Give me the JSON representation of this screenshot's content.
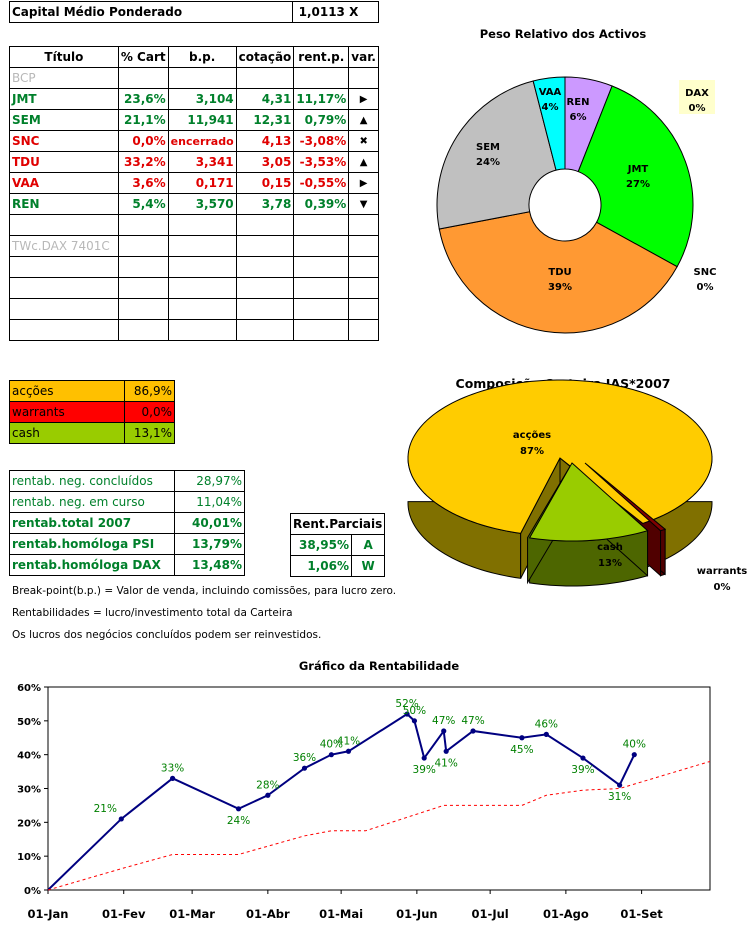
{
  "header": {
    "label": "Capital Médio Ponderado",
    "value": "1,0113 X"
  },
  "portfolio": {
    "columns": [
      "Título",
      "% Cart",
      "b.p.",
      "cotação",
      "rent.p.",
      "var."
    ],
    "rows": [
      {
        "titulo": "BCP",
        "cart": "",
        "bp": "",
        "cot": "",
        "rent": "",
        "var": "",
        "style": "grey"
      },
      {
        "titulo": "JMT",
        "cart": "23,6%",
        "bp": "3,104",
        "cot": "4,31",
        "rent": "11,17%",
        "var": "▶",
        "style": "green"
      },
      {
        "titulo": "SEM",
        "cart": "21,1%",
        "bp": "11,941",
        "cot": "12,31",
        "rent": "0,79%",
        "var": "▲",
        "style": "green"
      },
      {
        "titulo": "SNC",
        "cart": "0,0%",
        "bp": "encerrado",
        "cot": "4,13",
        "rent": "-3,08%",
        "var": "✖",
        "style": "red"
      },
      {
        "titulo": "TDU",
        "cart": "33,2%",
        "bp": "3,341",
        "cot": "3,05",
        "rent": "-3,53%",
        "var": "▲",
        "style": "red"
      },
      {
        "titulo": "VAA",
        "cart": "3,6%",
        "bp": "0,171",
        "cot": "0,15",
        "rent": "-0,55%",
        "var": "▶",
        "style": "red"
      },
      {
        "titulo": "REN",
        "cart": "5,4%",
        "bp": "3,570",
        "cot": "3,78",
        "rent": "0,39%",
        "var": "▼",
        "style": "green"
      },
      {
        "titulo": "",
        "cart": "",
        "bp": "",
        "cot": "",
        "rent": "",
        "var": "",
        "style": "grey"
      },
      {
        "titulo": "TWc.DAX 7401C",
        "cart": "",
        "bp": "",
        "cot": "",
        "rent": "",
        "var": "",
        "style": "grey"
      },
      {
        "titulo": "",
        "cart": "",
        "bp": "",
        "cot": "",
        "rent": "",
        "var": "",
        "style": "grey"
      },
      {
        "titulo": "",
        "cart": "",
        "bp": "",
        "cot": "",
        "rent": "",
        "var": "",
        "style": "grey"
      },
      {
        "titulo": "",
        "cart": "",
        "bp": "",
        "cot": "",
        "rent": "",
        "var": "",
        "style": "grey"
      },
      {
        "titulo": "",
        "cart": "",
        "bp": "",
        "cot": "",
        "rent": "",
        "var": "",
        "style": "grey"
      }
    ]
  },
  "allocation": [
    {
      "label": "acções",
      "value": "86,9%",
      "color": "#ffc000"
    },
    {
      "label": "warrants",
      "value": "0,0%",
      "color": "#ff0000"
    },
    {
      "label": "cash",
      "value": "13,1%",
      "color": "#99cc00"
    }
  ],
  "returns": [
    {
      "label": "rentab. neg. concluídos",
      "value": "28,97%",
      "bold": false
    },
    {
      "label": "rentab. neg. em curso",
      "value": "11,04%",
      "bold": false
    },
    {
      "label": "rentab.total 2007",
      "value": "40,01%",
      "bold": true
    },
    {
      "label": "rentab.homóloga PSI",
      "value": "13,79%",
      "bold": true
    },
    {
      "label": "rentab.homóloga DAX",
      "value": "13,48%",
      "bold": true
    }
  ],
  "partial": {
    "header": "Rent.Parciais",
    "rows": [
      {
        "value": "38,95%",
        "tag": "A"
      },
      {
        "value": "1,06%",
        "tag": "W"
      }
    ]
  },
  "notes": [
    "Break-point(b.p.) = Valor de venda, incluindo comissões, para lucro zero.",
    "Rentabilidades = lucro/investimento total da Carteira",
    "Os lucros dos negócios concluídos podem ser reinvestidos."
  ],
  "chart_data": [
    {
      "type": "pie",
      "title": "Peso Relativo dos Activos",
      "slices": [
        {
          "label": "REN",
          "value": 6,
          "color": "#cc99ff"
        },
        {
          "label": "JMT",
          "value": 27,
          "color": "#00ff00"
        },
        {
          "label": "SNC",
          "value": 0,
          "color": "#ff0000"
        },
        {
          "label": "TDU",
          "value": 39,
          "color": "#ff9933"
        },
        {
          "label": "SEM",
          "value": 24,
          "color": "#c0c0c0"
        },
        {
          "label": "VAA",
          "value": 4,
          "color": "#00ffff"
        },
        {
          "label": "DAX",
          "value": 0,
          "color": "#ffffcc"
        }
      ],
      "slice_labels": [
        "6%",
        "27%",
        "0%",
        "39%",
        "24%",
        "4%",
        "0%"
      ]
    },
    {
      "type": "pie",
      "title": "Composição Carteira JAS*2007",
      "slices": [
        {
          "label": "acções",
          "value": 87,
          "color": "#ffcc00"
        },
        {
          "label": "warrants",
          "value": 0,
          "color": "#800000"
        },
        {
          "label": "cash",
          "value": 13,
          "color": "#99cc00"
        }
      ],
      "slice_labels": [
        "87%",
        "0%",
        "13%"
      ]
    },
    {
      "type": "line",
      "title": "Gráfico da Rentabilidade",
      "x_ticks": [
        "01-Jan",
        "01-Fev",
        "01-Mar",
        "01-Abr",
        "01-Mai",
        "01-Jun",
        "01-Jul",
        "01-Ago",
        "01-Set"
      ],
      "y_ticks": [
        "0%",
        "10%",
        "20%",
        "30%",
        "40%",
        "50%",
        "60%"
      ],
      "ylim": [
        0,
        60
      ],
      "xlim": [
        "2007-01-01",
        "2007-09-29"
      ],
      "series": [
        {
          "style": "solid",
          "color": "#000080",
          "points": [
            {
              "x": "2007-01-01",
              "y": 0
            },
            {
              "x": "2007-01-31",
              "y": 21,
              "label": "21%"
            },
            {
              "x": "2007-02-21",
              "y": 33,
              "label": "33%"
            },
            {
              "x": "2007-03-20",
              "y": 24,
              "label": "24%"
            },
            {
              "x": "2007-04-01",
              "y": 28,
              "label": "28%"
            },
            {
              "x": "2007-04-16",
              "y": 36,
              "label": "36%"
            },
            {
              "x": "2007-04-27",
              "y": 40,
              "label": "40%"
            },
            {
              "x": "2007-05-04",
              "y": 41,
              "label": "41%"
            },
            {
              "x": "2007-05-28",
              "y": 52,
              "label": "52%"
            },
            {
              "x": "2007-05-31",
              "y": 50,
              "label": "50%"
            },
            {
              "x": "2007-06-04",
              "y": 39,
              "label": "39%"
            },
            {
              "x": "2007-06-12",
              "y": 47,
              "label": "47%"
            },
            {
              "x": "2007-06-13",
              "y": 41,
              "label": "41%"
            },
            {
              "x": "2007-06-24",
              "y": 47,
              "label": "47%"
            },
            {
              "x": "2007-07-14",
              "y": 45,
              "label": "45%"
            },
            {
              "x": "2007-07-24",
              "y": 46,
              "label": "46%"
            },
            {
              "x": "2007-08-08",
              "y": 39,
              "label": "39%"
            },
            {
              "x": "2007-08-23",
              "y": 31,
              "label": "31%"
            },
            {
              "x": "2007-08-29",
              "y": 40,
              "label": "40%"
            }
          ]
        },
        {
          "style": "dashed",
          "color": "#ff0000",
          "points": [
            {
              "x": "2007-01-01",
              "y": 0
            },
            {
              "x": "2007-02-01",
              "y": 6.5
            },
            {
              "x": "2007-02-21",
              "y": 10.5
            },
            {
              "x": "2007-03-20",
              "y": 10.5
            },
            {
              "x": "2007-04-16",
              "y": 16
            },
            {
              "x": "2007-04-27",
              "y": 17.5
            },
            {
              "x": "2007-05-11",
              "y": 17.5
            },
            {
              "x": "2007-06-12",
              "y": 25
            },
            {
              "x": "2007-07-14",
              "y": 25
            },
            {
              "x": "2007-07-24",
              "y": 28
            },
            {
              "x": "2007-08-08",
              "y": 29.5
            },
            {
              "x": "2007-08-23",
              "y": 30
            },
            {
              "x": "2007-09-29",
              "y": 38
            }
          ]
        }
      ]
    }
  ]
}
